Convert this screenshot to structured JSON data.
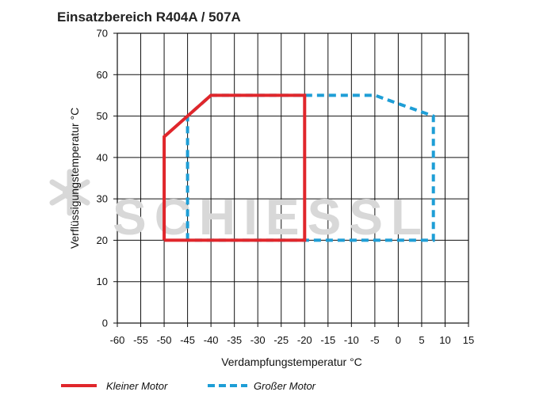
{
  "chart_data": {
    "type": "line",
    "title": "Einsatzbereich R404A / 507A",
    "xlabel": "Verdampfungstemperatur °C",
    "ylabel": "Verflüssigungstemperatur °C",
    "xlim": [
      -60,
      15
    ],
    "ylim": [
      0,
      70
    ],
    "xticks": [
      -60,
      -55,
      -50,
      -45,
      -40,
      -35,
      -30,
      -25,
      -20,
      -15,
      -10,
      -5,
      0,
      5,
      10,
      15
    ],
    "yticks": [
      0,
      10,
      20,
      30,
      40,
      50,
      60,
      70
    ],
    "grid": true,
    "legend_position": "bottom",
    "series": [
      {
        "name": "Kleiner Motor",
        "color": "#e0262b",
        "style": "solid",
        "x": [
          -50,
          -50,
          -40,
          -20,
          -20,
          -50
        ],
        "y": [
          20,
          45,
          55,
          55,
          20,
          20
        ]
      },
      {
        "name": "Großer Motor",
        "color": "#1e9ed6",
        "style": "dashed",
        "x": [
          -45,
          -45,
          -40,
          -5,
          7.5,
          7.5,
          -20,
          -45
        ],
        "y": [
          20,
          50,
          55,
          55,
          50,
          20,
          20,
          20
        ]
      }
    ]
  },
  "watermark": {
    "text": "SCHIESSL",
    "icon": "snowflake-icon",
    "color": "#d8d8d8"
  }
}
